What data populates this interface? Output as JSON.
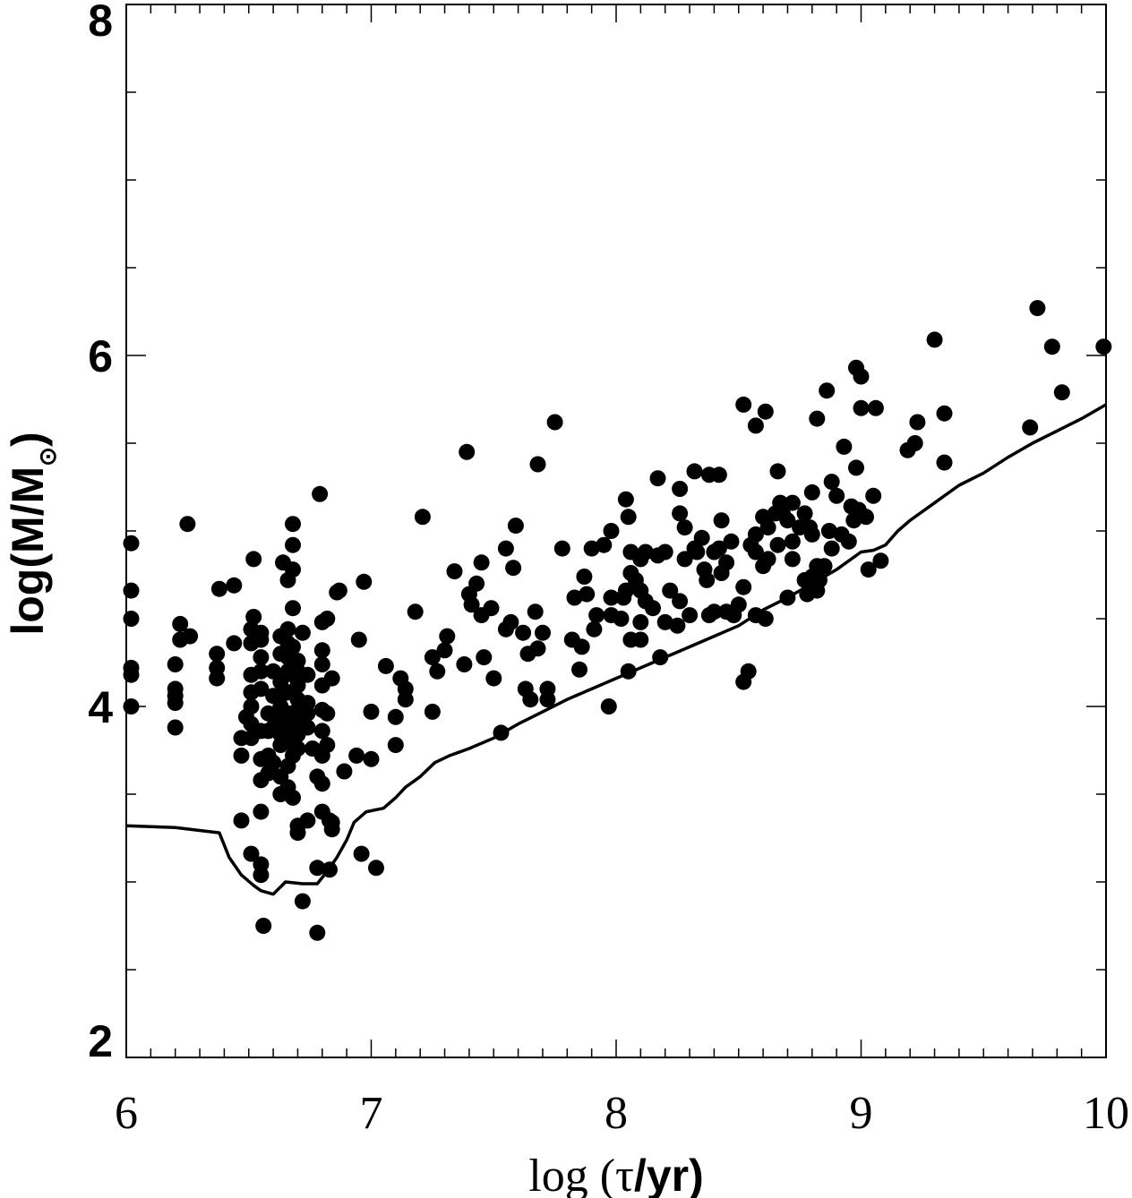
{
  "chart_data": {
    "type": "scatter",
    "xlim": [
      6,
      10
    ],
    "ylim": [
      2,
      8
    ],
    "x_ticks": [
      "6",
      "7",
      "8",
      "9",
      "10"
    ],
    "y_ticks": [
      "2",
      "4",
      "6",
      "8"
    ],
    "xlabel": {
      "prefix": "log (",
      "symbol": "τ",
      "suffix": "/yr)"
    },
    "ylabel": {
      "main": "log(M/M",
      "subscript": "⊙",
      "close": ")"
    },
    "grid": false,
    "points": [
      [
        6.02,
        4.0
      ],
      [
        6.02,
        4.18
      ],
      [
        6.02,
        4.22
      ],
      [
        6.02,
        4.5
      ],
      [
        6.02,
        4.66
      ],
      [
        6.02,
        4.93
      ],
      [
        6.2,
        3.88
      ],
      [
        6.2,
        4.02
      ],
      [
        6.2,
        4.06
      ],
      [
        6.2,
        4.1
      ],
      [
        6.2,
        4.24
      ],
      [
        6.22,
        4.38
      ],
      [
        6.22,
        4.47
      ],
      [
        6.25,
        5.04
      ],
      [
        6.26,
        4.4
      ],
      [
        6.37,
        4.16
      ],
      [
        6.37,
        4.22
      ],
      [
        6.37,
        4.3
      ],
      [
        6.38,
        4.67
      ],
      [
        6.44,
        4.36
      ],
      [
        6.44,
        4.69
      ],
      [
        6.47,
        3.35
      ],
      [
        6.47,
        3.72
      ],
      [
        6.47,
        3.82
      ],
      [
        6.49,
        3.94
      ],
      [
        6.51,
        3.82
      ],
      [
        6.51,
        3.9
      ],
      [
        6.51,
        4.0
      ],
      [
        6.51,
        4.08
      ],
      [
        6.51,
        4.18
      ],
      [
        6.51,
        4.36
      ],
      [
        6.51,
        4.44
      ],
      [
        6.52,
        4.51
      ],
      [
        6.52,
        4.84
      ],
      [
        6.51,
        3.16
      ],
      [
        6.55,
        3.1
      ],
      [
        6.55,
        3.04
      ],
      [
        6.55,
        3.4
      ],
      [
        6.55,
        3.58
      ],
      [
        6.55,
        3.7
      ],
      [
        6.55,
        3.86
      ],
      [
        6.55,
        4.1
      ],
      [
        6.55,
        4.2
      ],
      [
        6.55,
        4.28
      ],
      [
        6.55,
        4.38
      ],
      [
        6.55,
        4.42
      ],
      [
        6.56,
        2.75
      ],
      [
        6.58,
        3.62
      ],
      [
        6.58,
        3.72
      ],
      [
        6.58,
        3.86
      ],
      [
        6.58,
        3.96
      ],
      [
        6.6,
        3.68
      ],
      [
        6.6,
        3.88
      ],
      [
        6.6,
        4.06
      ],
      [
        6.6,
        4.2
      ],
      [
        6.63,
        3.5
      ],
      [
        6.63,
        3.6
      ],
      [
        6.63,
        3.78
      ],
      [
        6.63,
        3.84
      ],
      [
        6.63,
        3.92
      ],
      [
        6.63,
        4.0
      ],
      [
        6.63,
        4.06
      ],
      [
        6.63,
        4.14
      ],
      [
        6.63,
        4.3
      ],
      [
        6.63,
        4.4
      ],
      [
        6.64,
        4.82
      ],
      [
        6.66,
        3.54
      ],
      [
        6.66,
        3.66
      ],
      [
        6.66,
        3.8
      ],
      [
        6.66,
        3.9
      ],
      [
        6.66,
        3.96
      ],
      [
        6.66,
        4.08
      ],
      [
        6.66,
        4.2
      ],
      [
        6.66,
        4.28
      ],
      [
        6.66,
        4.36
      ],
      [
        6.66,
        4.44
      ],
      [
        6.66,
        4.72
      ],
      [
        6.68,
        3.48
      ],
      [
        6.68,
        3.72
      ],
      [
        6.68,
        3.88
      ],
      [
        6.68,
        3.96
      ],
      [
        6.68,
        4.08
      ],
      [
        6.68,
        4.18
      ],
      [
        6.68,
        4.34
      ],
      [
        6.68,
        4.56
      ],
      [
        6.68,
        4.78
      ],
      [
        6.68,
        4.92
      ],
      [
        6.68,
        5.04
      ],
      [
        6.7,
        3.28
      ],
      [
        6.7,
        3.32
      ],
      [
        6.7,
        3.76
      ],
      [
        6.7,
        3.84
      ],
      [
        6.7,
        3.92
      ],
      [
        6.7,
        3.98
      ],
      [
        6.7,
        4.04
      ],
      [
        6.7,
        4.12
      ],
      [
        6.7,
        4.2
      ],
      [
        6.7,
        4.26
      ],
      [
        6.72,
        4.42
      ],
      [
        6.72,
        2.89
      ],
      [
        6.74,
        3.35
      ],
      [
        6.74,
        3.88
      ],
      [
        6.74,
        3.96
      ],
      [
        6.74,
        4.02
      ],
      [
        6.74,
        4.18
      ],
      [
        6.76,
        3.76
      ],
      [
        6.78,
        2.71
      ],
      [
        6.78,
        3.08
      ],
      [
        6.78,
        3.6
      ],
      [
        6.79,
        5.21
      ],
      [
        6.8,
        3.4
      ],
      [
        6.8,
        3.56
      ],
      [
        6.8,
        3.72
      ],
      [
        6.8,
        3.86
      ],
      [
        6.8,
        3.98
      ],
      [
        6.8,
        4.12
      ],
      [
        6.8,
        4.24
      ],
      [
        6.8,
        4.32
      ],
      [
        6.8,
        4.48
      ],
      [
        6.82,
        3.78
      ],
      [
        6.82,
        3.96
      ],
      [
        6.82,
        4.5
      ],
      [
        6.83,
        3.07
      ],
      [
        6.83,
        3.35
      ],
      [
        6.84,
        3.3
      ],
      [
        6.84,
        3.34
      ],
      [
        6.84,
        4.16
      ],
      [
        6.86,
        4.65
      ],
      [
        6.87,
        4.66
      ],
      [
        6.89,
        3.63
      ],
      [
        6.94,
        3.72
      ],
      [
        6.95,
        4.38
      ],
      [
        6.96,
        3.16
      ],
      [
        6.97,
        4.71
      ],
      [
        7.0,
        3.7
      ],
      [
        7.0,
        3.97
      ],
      [
        7.02,
        3.08
      ],
      [
        7.06,
        4.23
      ],
      [
        7.1,
        3.78
      ],
      [
        7.1,
        3.94
      ],
      [
        7.12,
        4.16
      ],
      [
        7.14,
        4.04
      ],
      [
        7.14,
        4.1
      ],
      [
        7.18,
        4.54
      ],
      [
        7.21,
        5.08
      ],
      [
        7.25,
        3.97
      ],
      [
        7.25,
        4.28
      ],
      [
        7.27,
        4.2
      ],
      [
        7.3,
        4.32
      ],
      [
        7.31,
        4.4
      ],
      [
        7.34,
        4.77
      ],
      [
        7.38,
        4.24
      ],
      [
        7.39,
        5.45
      ],
      [
        7.4,
        4.64
      ],
      [
        7.41,
        4.58
      ],
      [
        7.43,
        4.7
      ],
      [
        7.45,
        4.52
      ],
      [
        7.45,
        4.82
      ],
      [
        7.46,
        4.28
      ],
      [
        7.49,
        4.56
      ],
      [
        7.5,
        4.16
      ],
      [
        7.53,
        3.85
      ],
      [
        7.55,
        4.44
      ],
      [
        7.55,
        4.9
      ],
      [
        7.57,
        4.48
      ],
      [
        7.58,
        4.79
      ],
      [
        7.59,
        5.03
      ],
      [
        7.62,
        4.42
      ],
      [
        7.63,
        4.1
      ],
      [
        7.64,
        4.3
      ],
      [
        7.65,
        4.04
      ],
      [
        7.67,
        4.54
      ],
      [
        7.68,
        4.33
      ],
      [
        7.68,
        5.38
      ],
      [
        7.7,
        4.42
      ],
      [
        7.72,
        4.04
      ],
      [
        7.72,
        4.1
      ],
      [
        7.75,
        5.62
      ],
      [
        7.78,
        4.9
      ],
      [
        7.82,
        4.38
      ],
      [
        7.83,
        4.62
      ],
      [
        7.85,
        4.21
      ],
      [
        7.86,
        4.34
      ],
      [
        7.87,
        4.74
      ],
      [
        7.88,
        4.64
      ],
      [
        7.9,
        4.9
      ],
      [
        7.91,
        4.44
      ],
      [
        7.92,
        4.52
      ],
      [
        7.95,
        4.92
      ],
      [
        7.97,
        4.0
      ],
      [
        7.98,
        4.62
      ],
      [
        7.98,
        5.0
      ],
      [
        7.98,
        4.52
      ],
      [
        8.02,
        4.5
      ],
      [
        8.03,
        4.62
      ],
      [
        8.04,
        4.66
      ],
      [
        8.04,
        5.18
      ],
      [
        8.05,
        5.08
      ],
      [
        8.05,
        4.2
      ],
      [
        8.06,
        4.38
      ],
      [
        8.06,
        4.76
      ],
      [
        8.06,
        4.88
      ],
      [
        8.08,
        4.72
      ],
      [
        8.1,
        4.38
      ],
      [
        8.1,
        4.48
      ],
      [
        8.1,
        4.66
      ],
      [
        8.1,
        4.84
      ],
      [
        8.12,
        4.6
      ],
      [
        8.12,
        4.88
      ],
      [
        8.15,
        4.56
      ],
      [
        8.17,
        4.86
      ],
      [
        8.17,
        5.3
      ],
      [
        8.18,
        4.28
      ],
      [
        8.2,
        4.88
      ],
      [
        8.2,
        4.48
      ],
      [
        8.22,
        4.66
      ],
      [
        8.25,
        4.46
      ],
      [
        8.26,
        4.6
      ],
      [
        8.26,
        5.1
      ],
      [
        8.26,
        5.24
      ],
      [
        8.28,
        5.02
      ],
      [
        8.28,
        4.84
      ],
      [
        8.3,
        4.52
      ],
      [
        8.32,
        5.34
      ],
      [
        8.32,
        4.9
      ],
      [
        8.33,
        4.88
      ],
      [
        8.35,
        4.96
      ],
      [
        8.36,
        4.78
      ],
      [
        8.37,
        4.72
      ],
      [
        8.38,
        5.32
      ],
      [
        8.38,
        4.52
      ],
      [
        8.4,
        4.54
      ],
      [
        8.4,
        4.88
      ],
      [
        8.42,
        5.32
      ],
      [
        8.42,
        4.9
      ],
      [
        8.43,
        4.76
      ],
      [
        8.43,
        5.06
      ],
      [
        8.45,
        4.82
      ],
      [
        8.45,
        4.54
      ],
      [
        8.47,
        4.94
      ],
      [
        8.48,
        4.52
      ],
      [
        8.5,
        4.58
      ],
      [
        8.52,
        4.68
      ],
      [
        8.52,
        4.14
      ],
      [
        8.52,
        5.72
      ],
      [
        8.54,
        4.2
      ],
      [
        8.55,
        4.92
      ],
      [
        8.57,
        4.88
      ],
      [
        8.57,
        4.98
      ],
      [
        8.57,
        5.6
      ],
      [
        8.57,
        4.52
      ],
      [
        8.6,
        5.08
      ],
      [
        8.6,
        4.8
      ],
      [
        8.61,
        5.68
      ],
      [
        8.61,
        4.5
      ],
      [
        8.62,
        4.84
      ],
      [
        8.62,
        5.02
      ],
      [
        8.65,
        5.1
      ],
      [
        8.66,
        5.34
      ],
      [
        8.66,
        4.92
      ],
      [
        8.67,
        5.16
      ],
      [
        8.68,
        5.1
      ],
      [
        8.7,
        4.62
      ],
      [
        8.7,
        5.06
      ],
      [
        8.72,
        4.84
      ],
      [
        8.72,
        5.16
      ],
      [
        8.72,
        4.94
      ],
      [
        8.75,
        5.02
      ],
      [
        8.77,
        4.72
      ],
      [
        8.77,
        5.1
      ],
      [
        8.78,
        4.64
      ],
      [
        8.79,
        5.02
      ],
      [
        8.8,
        4.74
      ],
      [
        8.8,
        4.98
      ],
      [
        8.8,
        5.22
      ],
      [
        8.82,
        5.64
      ],
      [
        8.82,
        4.66
      ],
      [
        8.82,
        4.8
      ],
      [
        8.83,
        4.72
      ],
      [
        8.85,
        4.8
      ],
      [
        8.86,
        5.8
      ],
      [
        8.87,
        5.0
      ],
      [
        8.88,
        5.28
      ],
      [
        8.88,
        4.9
      ],
      [
        8.9,
        5.2
      ],
      [
        8.92,
        4.98
      ],
      [
        8.93,
        5.48
      ],
      [
        8.95,
        4.94
      ],
      [
        8.96,
        5.14
      ],
      [
        8.97,
        5.06
      ],
      [
        8.98,
        5.93
      ],
      [
        8.98,
        5.36
      ],
      [
        8.99,
        5.12
      ],
      [
        9.0,
        5.88
      ],
      [
        9.0,
        5.7
      ],
      [
        9.02,
        5.08
      ],
      [
        9.03,
        4.78
      ],
      [
        9.05,
        5.2
      ],
      [
        9.06,
        5.7
      ],
      [
        9.08,
        4.83
      ],
      [
        9.19,
        5.46
      ],
      [
        9.22,
        5.5
      ],
      [
        9.23,
        5.62
      ],
      [
        9.3,
        6.09
      ],
      [
        9.34,
        5.39
      ],
      [
        9.34,
        5.67
      ],
      [
        9.69,
        5.59
      ],
      [
        9.72,
        6.27
      ],
      [
        9.78,
        6.05
      ],
      [
        9.82,
        5.79
      ],
      [
        9.99,
        6.05
      ]
    ],
    "line": [
      [
        6.0,
        3.32
      ],
      [
        6.2,
        3.31
      ],
      [
        6.38,
        3.28
      ],
      [
        6.42,
        3.14
      ],
      [
        6.47,
        3.04
      ],
      [
        6.52,
        2.98
      ],
      [
        6.55,
        2.95
      ],
      [
        6.6,
        2.93
      ],
      [
        6.65,
        3.0
      ],
      [
        6.72,
        2.99
      ],
      [
        6.78,
        2.99
      ],
      [
        6.82,
        3.06
      ],
      [
        6.86,
        3.14
      ],
      [
        6.9,
        3.24
      ],
      [
        6.93,
        3.34
      ],
      [
        6.98,
        3.4
      ],
      [
        7.05,
        3.42
      ],
      [
        7.1,
        3.48
      ],
      [
        7.14,
        3.54
      ],
      [
        7.2,
        3.6
      ],
      [
        7.26,
        3.68
      ],
      [
        7.32,
        3.72
      ],
      [
        7.4,
        3.76
      ],
      [
        7.5,
        3.82
      ],
      [
        7.6,
        3.9
      ],
      [
        7.7,
        3.97
      ],
      [
        7.8,
        4.04
      ],
      [
        7.9,
        4.1
      ],
      [
        8.0,
        4.16
      ],
      [
        8.1,
        4.22
      ],
      [
        8.2,
        4.28
      ],
      [
        8.3,
        4.34
      ],
      [
        8.4,
        4.4
      ],
      [
        8.5,
        4.46
      ],
      [
        8.6,
        4.55
      ],
      [
        8.7,
        4.62
      ],
      [
        8.8,
        4.7
      ],
      [
        8.9,
        4.78
      ],
      [
        9.0,
        4.88
      ],
      [
        9.05,
        4.89
      ],
      [
        9.1,
        4.92
      ],
      [
        9.15,
        5.0
      ],
      [
        9.2,
        5.06
      ],
      [
        9.3,
        5.16
      ],
      [
        9.4,
        5.26
      ],
      [
        9.5,
        5.33
      ],
      [
        9.6,
        5.42
      ],
      [
        9.7,
        5.5
      ],
      [
        9.8,
        5.57
      ],
      [
        9.9,
        5.64
      ],
      [
        10.0,
        5.72
      ]
    ]
  }
}
